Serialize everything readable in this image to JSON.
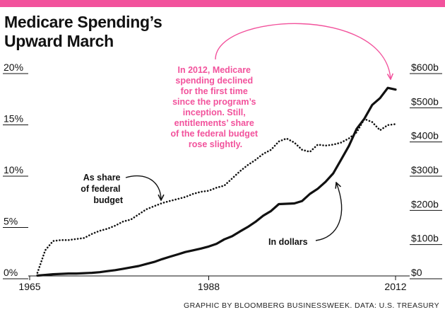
{
  "colors": {
    "accent": "#f2529c",
    "ink": "#111111",
    "background": "#ffffff"
  },
  "title_lines": [
    "Medicare Spending’s",
    "Upward March"
  ],
  "credit": "GRAPHIC BY BLOOMBERG BUSINESSWEEK. DATA: U.S. TREASURY",
  "chart_data": {
    "type": "line",
    "title": "Medicare Spending’s Upward March",
    "x_ticks": [
      "1965",
      "1988",
      "2012"
    ],
    "xlim": [
      1965,
      2012
    ],
    "left_axis": {
      "ticks": [
        "0%",
        "5%",
        "10%",
        "15%",
        "20%"
      ],
      "values": [
        0,
        5,
        10,
        15,
        20
      ],
      "range": [
        0,
        20
      ]
    },
    "right_axis": {
      "ticks": [
        "$0",
        "$100b",
        "$200b",
        "$300b",
        "$400b",
        "$500b",
        "$600b"
      ],
      "values": [
        0,
        100,
        200,
        300,
        400,
        500,
        600
      ],
      "range": [
        0,
        600
      ]
    },
    "series": [
      {
        "name": "In dollars",
        "label": "In dollars",
        "unit": "billions USD",
        "axis": "right",
        "style": "solid",
        "x": [
          1966,
          1967,
          1968,
          1969,
          1970,
          1971,
          1972,
          1973,
          1974,
          1975,
          1976,
          1977,
          1978,
          1979,
          1980,
          1981,
          1982,
          1983,
          1984,
          1985,
          1986,
          1987,
          1988,
          1989,
          1990,
          1991,
          1992,
          1993,
          1994,
          1995,
          1996,
          1997,
          1998,
          1999,
          2000,
          2001,
          2002,
          2003,
          2004,
          2005,
          2006,
          2007,
          2008,
          2009,
          2010,
          2011,
          2012
        ],
        "values": [
          1,
          3,
          5,
          6,
          7,
          7,
          8,
          9,
          11,
          14,
          17,
          21,
          25,
          29,
          35,
          41,
          49,
          56,
          63,
          70,
          75,
          80,
          86,
          94,
          107,
          116,
          130,
          143,
          158,
          176,
          190,
          210,
          211,
          212,
          219,
          240,
          255,
          275,
          300,
          340,
          380,
          430,
          460,
          500,
          520,
          550,
          545
        ]
      },
      {
        "name": "As share of federal budget",
        "label": "As share of federal budget",
        "unit": "percent",
        "axis": "left",
        "style": "dotted",
        "x": [
          1966,
          1967,
          1968,
          1969,
          1970,
          1971,
          1972,
          1973,
          1974,
          1975,
          1976,
          1977,
          1978,
          1979,
          1980,
          1981,
          1982,
          1983,
          1984,
          1985,
          1986,
          1987,
          1988,
          1989,
          1990,
          1991,
          1992,
          1993,
          1994,
          1995,
          1996,
          1997,
          1998,
          1999,
          2000,
          2001,
          2002,
          2003,
          2004,
          2005,
          2006,
          2007,
          2008,
          2009,
          2010,
          2011,
          2012
        ],
        "values": [
          0.3,
          2.5,
          3.4,
          3.5,
          3.5,
          3.6,
          3.7,
          4.1,
          4.4,
          4.6,
          4.9,
          5.3,
          5.5,
          6.0,
          6.5,
          6.8,
          7.1,
          7.3,
          7.5,
          7.7,
          8.0,
          8.2,
          8.3,
          8.6,
          8.8,
          9.5,
          10.2,
          10.8,
          11.3,
          11.9,
          12.3,
          13.1,
          13.4,
          13.0,
          12.3,
          12.1,
          12.8,
          12.7,
          12.8,
          13.0,
          13.4,
          14.0,
          15.3,
          15.0,
          14.2,
          14.7,
          14.8
        ]
      }
    ],
    "annotations": {
      "share": [
        "As share",
        "of federal",
        "budget"
      ],
      "dollars": "In dollars",
      "callout": [
        "In 2012, Medicare",
        "spending declined",
        "for the first time",
        "since the program’s",
        "inception. Still,",
        "entitlements’ share",
        "of the federal budget",
        "rose slightly."
      ]
    }
  }
}
